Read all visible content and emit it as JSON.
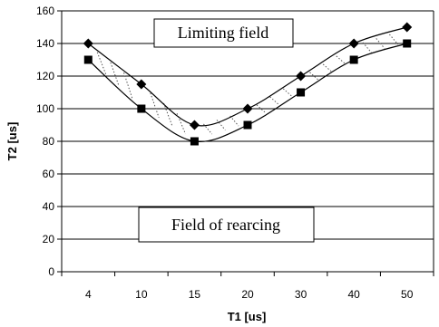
{
  "chart_data": {
    "type": "line",
    "categories": [
      "4",
      "10",
      "15",
      "20",
      "30",
      "40",
      "50"
    ],
    "series": [
      {
        "marker": "diamond",
        "values": [
          140,
          115,
          90,
          100,
          120,
          140,
          150
        ]
      },
      {
        "marker": "square",
        "values": [
          130,
          100,
          80,
          90,
          110,
          130,
          140
        ]
      }
    ],
    "xlabel": "T1 [us]",
    "ylabel": "T2 [us]",
    "ylim": [
      0,
      160
    ],
    "yticks": [
      0,
      20,
      40,
      60,
      80,
      100,
      120,
      140,
      160
    ],
    "grid": true,
    "annotations": [
      "Limiting field",
      "Field of rearcing"
    ]
  }
}
